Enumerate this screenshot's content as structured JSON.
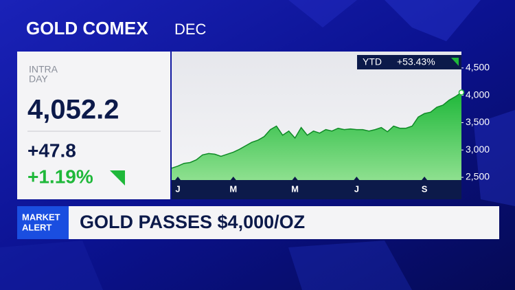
{
  "header": {
    "title": "GOLD COMEX",
    "contract": "DEC"
  },
  "quote": {
    "label_lines": [
      "INTRA",
      "DAY"
    ],
    "price": "4,052.2",
    "change": "+47.8",
    "change_pct": "+1.19%"
  },
  "ytd": {
    "label": "YTD",
    "value": "+53.43%"
  },
  "banner": {
    "tag_lines": [
      "MARKET",
      "ALERT"
    ],
    "headline": "GOLD PASSES $4,000/OZ"
  },
  "chart_data": {
    "type": "area",
    "color": "#1fb83a",
    "categories": [
      null,
      "J",
      null,
      null,
      null,
      null,
      null,
      null,
      null,
      null,
      "M",
      null,
      null,
      null,
      null,
      null,
      null,
      null,
      null,
      null,
      "M",
      null,
      null,
      null,
      null,
      null,
      null,
      null,
      null,
      null,
      "J",
      null,
      null,
      null,
      null,
      null,
      null,
      null,
      null,
      null,
      null,
      "S",
      null,
      null,
      null,
      null,
      null,
      null
    ],
    "values": [
      2667,
      2705,
      2756,
      2770,
      2820,
      2910,
      2935,
      2923,
      2885,
      2923,
      2960,
      3013,
      3077,
      3140,
      3180,
      3244,
      3372,
      3436,
      3270,
      3346,
      3218,
      3410,
      3270,
      3346,
      3308,
      3372,
      3346,
      3397,
      3372,
      3385,
      3372,
      3372,
      3346,
      3372,
      3410,
      3333,
      3436,
      3397,
      3397,
      3436,
      3603,
      3667,
      3692,
      3782,
      3821,
      3910,
      3974,
      4052
    ],
    "ylim": [
      2450,
      4800
    ],
    "yticks": [
      {
        "value": 2500,
        "label": "2,500"
      },
      {
        "value": 3000,
        "label": "3,000"
      },
      {
        "value": 3500,
        "label": "3,500"
      },
      {
        "value": 4000,
        "label": "4,000"
      },
      {
        "value": 4500,
        "label": "4,500"
      }
    ]
  }
}
